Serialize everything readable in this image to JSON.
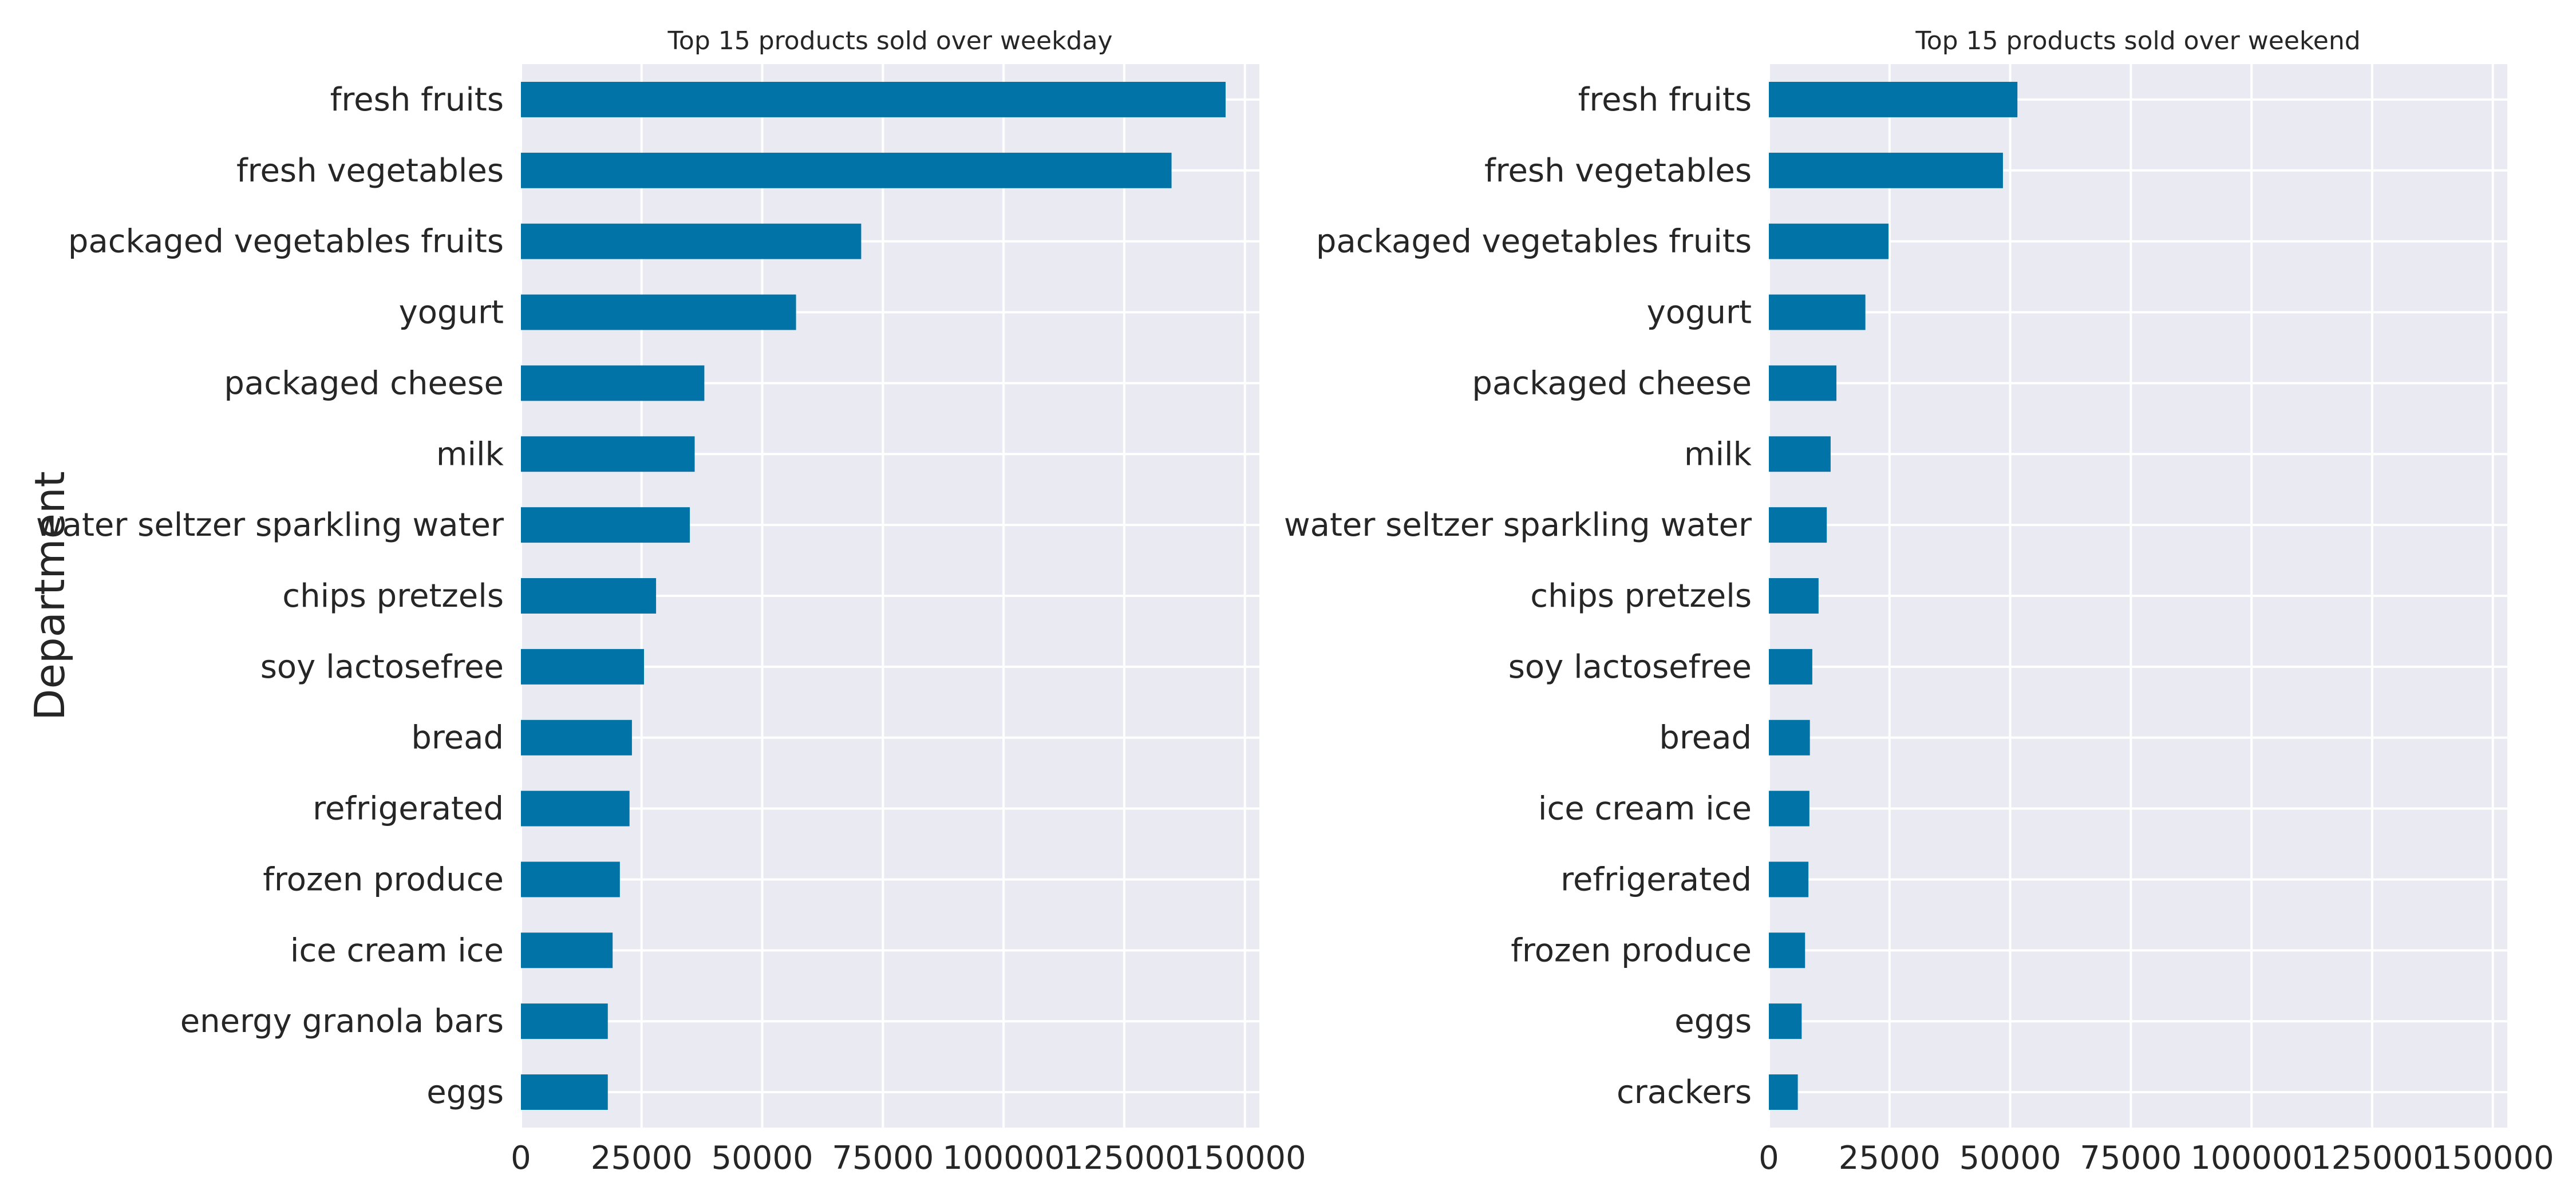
{
  "chart_data": [
    {
      "type": "bar",
      "orientation": "horizontal",
      "title": "Top 15 products sold over weekday",
      "ylabel": "Department",
      "xlabel": "",
      "categories": [
        "fresh fruits",
        "fresh vegetables",
        "packaged vegetables fruits",
        "yogurt",
        "packaged cheese",
        "milk",
        "water seltzer sparkling water",
        "chips pretzels",
        "soy lactosefree",
        "bread",
        "refrigerated",
        "frozen produce",
        "ice cream ice",
        "energy granola bars",
        "eggs"
      ],
      "values": [
        146000,
        134800,
        70500,
        57000,
        38000,
        36000,
        35000,
        28000,
        25500,
        23000,
        22500,
        20500,
        19000,
        18000,
        18000
      ],
      "xlim": [
        0,
        153000
      ],
      "xticks": [
        0,
        25000,
        50000,
        75000,
        100000,
        125000,
        150000
      ],
      "xtick_labels": [
        "0",
        "25000",
        "50000",
        "75000",
        "100000",
        "125000",
        "150000"
      ],
      "grid": true,
      "colors": {
        "bar": "#0173A7",
        "background": "#EAEAF2",
        "grid": "#FFFFFF"
      }
    },
    {
      "type": "bar",
      "orientation": "horizontal",
      "title": "Top 15 products sold over weekend",
      "ylabel": "",
      "xlabel": "",
      "categories": [
        "fresh fruits",
        "fresh vegetables",
        "packaged vegetables fruits",
        "yogurt",
        "packaged cheese",
        "milk",
        "water seltzer sparkling water",
        "chips pretzels",
        "soy lactosefree",
        "bread",
        "ice cream ice",
        "refrigerated",
        "frozen produce",
        "eggs",
        "crackers"
      ],
      "values": [
        51500,
        48500,
        24800,
        20000,
        14000,
        12800,
        12000,
        10300,
        9000,
        8500,
        8400,
        8200,
        7500,
        6800,
        6000
      ],
      "xlim": [
        0,
        153000
      ],
      "xticks": [
        0,
        25000,
        50000,
        75000,
        100000,
        125000,
        150000
      ],
      "xtick_labels": [
        "0",
        "25000",
        "50000",
        "75000",
        "100000",
        "125000",
        "150000"
      ],
      "grid": true,
      "colors": {
        "bar": "#0173A7",
        "background": "#EAEAF2",
        "grid": "#FFFFFF"
      }
    }
  ]
}
